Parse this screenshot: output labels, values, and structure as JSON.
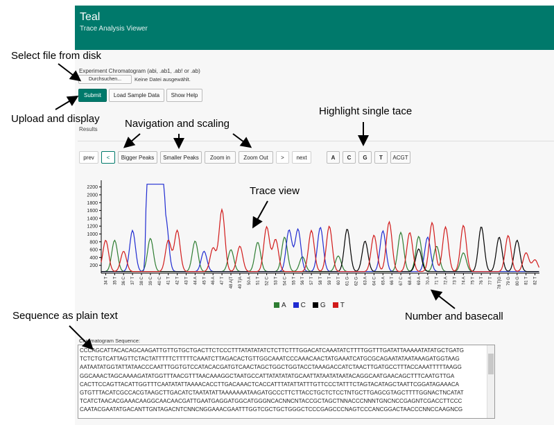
{
  "header": {
    "title": "Teal",
    "subtitle": "Trace Analysis Viewer"
  },
  "upload": {
    "label": "Experiment Chromatogram (abi, .ab1, .ab! or .ab)",
    "browse_button": "Durchsuchen...",
    "file_status": "Keine Datei ausgewählt."
  },
  "actions": {
    "submit": "Submit",
    "sample": "Load Sample Data",
    "help": "Show Help"
  },
  "results_label": "Results",
  "nav": {
    "prev": "prev",
    "left": "<",
    "bigger": "Bigger Peaks",
    "smaller": "Smaller Peaks",
    "zoom_in": "Zoom in",
    "zoom_out": "Zoom Out",
    "right": ">",
    "next": "next"
  },
  "trace_buttons": [
    "A",
    "C",
    "G",
    "T",
    "ACGT"
  ],
  "annotations": {
    "select_file": "Select file from disk",
    "upload_display": "Upload and display",
    "nav_scaling": "Navigation and scaling",
    "highlight": "Highlight single tace",
    "trace_view": "Trace view",
    "sequence_plain": "Sequence as plain text",
    "number_basecall": "Number and basecall"
  },
  "colors": {
    "A": "#2e7d32",
    "C": "#1f2bd1",
    "G": "#000000",
    "T": "#d11a1a",
    "accent": "#00796b"
  },
  "chart_data": {
    "type": "line",
    "ylim": [
      0,
      2300
    ],
    "yticks": [
      200,
      400,
      600,
      800,
      1000,
      1200,
      1400,
      1600,
      1800,
      2000,
      2200
    ],
    "xtick_labels": [
      "34 T",
      "35 T",
      "36 C",
      "37 T",
      "38 C",
      "39 C",
      "40 C",
      "41 T",
      "42 T",
      "43 T",
      "44 A",
      "45 T",
      "46 A",
      "47 T",
      "48 A|T",
      "49 T|A",
      "50 A",
      "51 T",
      "52 C",
      "53 T",
      "54 C",
      "55 T",
      "56 T",
      "57 T",
      "58 T",
      "59 T",
      "60 T",
      "61 G",
      "62 G",
      "63 A",
      "64 C",
      "65 A",
      "66 T",
      "67 C",
      "68 A",
      "69 A",
      "70 A",
      "71 T",
      "72 A",
      "73 T",
      "74 A",
      "75 T",
      "76 T",
      "77 T",
      "78 T|G",
      "79 G",
      "80 G",
      "81 T",
      "82 T"
    ],
    "series": [
      {
        "name": "A",
        "peaks": [
          [
            1,
            800
          ],
          [
            5,
            850
          ],
          [
            10,
            780
          ],
          [
            14,
            560
          ],
          [
            17,
            750
          ],
          [
            20,
            880
          ],
          [
            22,
            380
          ],
          [
            26,
            400
          ],
          [
            33,
            1000
          ],
          [
            35,
            900
          ],
          [
            37,
            650
          ],
          [
            40,
            480
          ]
        ]
      },
      {
        "name": "C",
        "peaks": [
          [
            3,
            1050
          ],
          [
            5.5,
            2270
          ],
          [
            6.7,
            1380
          ],
          [
            11,
            520
          ],
          [
            20.5,
            1060
          ],
          [
            21.5,
            1080
          ],
          [
            24,
            1130
          ],
          [
            31,
            1040
          ],
          [
            36,
            880
          ]
        ]
      },
      {
        "name": "G",
        "peaks": [
          [
            27,
            1090
          ],
          [
            29,
            780
          ],
          [
            35,
            580
          ],
          [
            42,
            1150
          ],
          [
            44,
            880
          ],
          [
            46,
            800
          ]
        ]
      },
      {
        "name": "T",
        "peaks": [
          [
            0,
            800
          ],
          [
            2,
            520
          ],
          [
            7,
            800
          ],
          [
            8,
            1050
          ],
          [
            12,
            600
          ],
          [
            13,
            1580
          ],
          [
            15,
            650
          ],
          [
            18,
            1140
          ],
          [
            19,
            820
          ],
          [
            23,
            1050
          ],
          [
            25,
            1160
          ],
          [
            30,
            930
          ],
          [
            31.7,
            1270
          ],
          [
            34,
            1000
          ],
          [
            36.5,
            1250
          ],
          [
            38,
            1140
          ],
          [
            40,
            1180
          ],
          [
            45,
            920
          ],
          [
            47,
            480
          ],
          [
            48,
            300
          ]
        ]
      }
    ]
  },
  "sequence": {
    "label": "Chromatogram Sequence:",
    "lines": [
      "CCCAGCATTACACAGCAAGATTGTTGTGCTGACTTCTCCCTTTATATATATCTCTTCTTTGGACATCAAATATCTTTTGGTTTGATATTAAAAATATATGCTGATG",
      "TCTCTGTCATTAGTTCTACTATTTTTCTTTTTCAAATCTTAGACACTGTTGGCAAATCCCAAACAACTATGAAATCATGCGCAGAATATAATAAAGATGGTAAG",
      "AATAATATGGTATTATAACCCAATTTGGTGTCCATACACGATGTCAACTAGCTGGCTGGTACCTAAAGACCATCTAACTTGATGCCTTTACCAAATTTTTAAGG",
      "GGCAAACTAGCAAAAGATATGGTTTAACGTTTAACAAAGGCTAATGCCATTATATATATGCAATTATAATATAATACAGGCAATGAACAGCTTTCAATGTTGA",
      "CACTTCCAGTTACATTGGTTTCAATATATTAAAACACCTTGACAAACTCACCATTTATATTATTTGTTCCCTATTTCTAGTACATAGCTAATTCGGATAGAAACA",
      "GTGTTTACATCGCCACGTAAGCTTGACATCTAATATATTAAAAAAATAAGATGCCCTTCTTACCTGCTCTCCTNTGCTTGAGCGTAGCTTTTGGNACTNCATAT",
      "TCATCTAACACGAAACAAGGCAACAACGATTGAATGAGGATGGCATGGGNCACNNCNTACCGCTAGCTNNACCCNNNTGNCNCCGAGNTCGACCTTCCC",
      "CAATACGAATATGACANTTGNTAGACNTCNNCNGGAAACGAATTTGGTCGCTGCTGGGCTCCCGAGCCCNAGTCCCANCGGACTAACCCNNCCAAGNCG"
    ]
  }
}
